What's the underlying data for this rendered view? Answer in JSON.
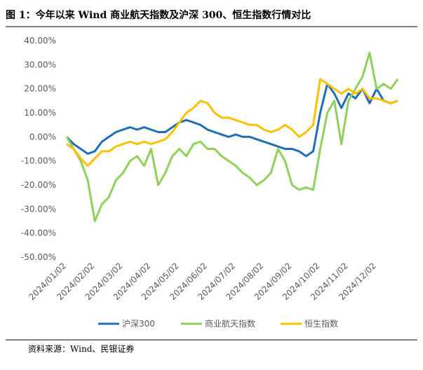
{
  "chart_data": {
    "type": "line",
    "title": "图 1：今年以来 Wind 商业航天指数及沪深 300、恒生指数行情对比",
    "note": "资料来源：Wind、民银证券",
    "categories": [
      "2024/01/02",
      null,
      null,
      null,
      "2024/02/02",
      null,
      null,
      null,
      "2024/03/02",
      null,
      null,
      null,
      "2024/04/02",
      null,
      null,
      null,
      "2024/05/02",
      null,
      null,
      null,
      "2024/06/02",
      null,
      null,
      null,
      "2024/07/02",
      null,
      null,
      null,
      "2024/08/02",
      null,
      null,
      null,
      "2024/09/02",
      null,
      null,
      null,
      "2024/10/02",
      null,
      null,
      null,
      "2024/11/02",
      null,
      null,
      null,
      "2024/12/02",
      null,
      null,
      null
    ],
    "series": [
      {
        "name": "沪深300",
        "color": "#1f6fb5",
        "values": [
          0,
          -3,
          -5,
          -7,
          -6,
          -2,
          0,
          2,
          3,
          4,
          3,
          4,
          3,
          2,
          2,
          4,
          6,
          7,
          6,
          5,
          3,
          2,
          1,
          0,
          1,
          0,
          0,
          -1,
          -2,
          -3,
          -4,
          -5,
          -5,
          -6,
          -8,
          -6,
          10,
          22,
          18,
          12,
          18,
          16,
          20,
          14,
          20,
          15,
          14,
          15
        ]
      },
      {
        "name": "商业航天指数",
        "color": "#8fd15a",
        "values": [
          0,
          -5,
          -10,
          -18,
          -35,
          -28,
          -25,
          -18,
          -15,
          -10,
          -8,
          -12,
          -5,
          -20,
          -15,
          -8,
          -5,
          -8,
          -3,
          -2,
          -5,
          -5,
          -8,
          -10,
          -12,
          -15,
          -17,
          -20,
          -18,
          -15,
          -5,
          -10,
          -20,
          -22,
          -21,
          -22,
          -5,
          10,
          15,
          -3,
          15,
          20,
          25,
          35,
          20,
          22,
          20,
          24
        ]
      },
      {
        "name": "恒生指数",
        "color": "#ffc000",
        "values": [
          -3,
          -5,
          -9,
          -12,
          -9,
          -6,
          -6,
          -4,
          -3,
          -2,
          -3,
          -2,
          -3,
          -2,
          -1,
          2,
          6,
          10,
          12,
          15,
          14,
          10,
          8,
          8,
          7,
          6,
          5,
          5,
          3,
          2,
          3,
          5,
          3,
          0,
          2,
          5,
          24,
          22,
          20,
          18,
          20,
          18,
          20,
          16,
          16,
          15,
          14,
          15
        ]
      }
    ],
    "ylim": [
      -50,
      40
    ],
    "yticks": [
      {
        "value": -50,
        "label": "-50.00%"
      },
      {
        "value": -40,
        "label": "-40.00%"
      },
      {
        "value": -30,
        "label": "-30.00%"
      },
      {
        "value": -20,
        "label": "-20.00%"
      },
      {
        "value": -10,
        "label": "-10.00%"
      },
      {
        "value": 0,
        "label": "0.00%"
      },
      {
        "value": 10,
        "label": "10.00%"
      },
      {
        "value": 20,
        "label": "20.00%"
      },
      {
        "value": 30,
        "label": "30.00%"
      },
      {
        "value": 40,
        "label": "40.00%"
      }
    ],
    "legend": "bottom"
  }
}
